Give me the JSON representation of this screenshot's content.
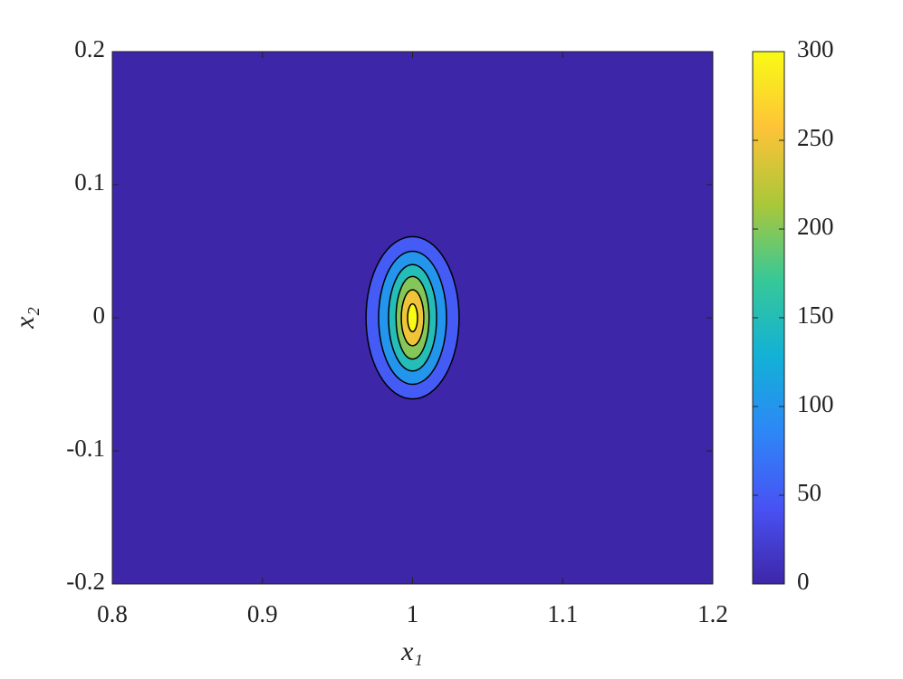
{
  "chart_data": {
    "type": "contour",
    "xlabel": "x₁",
    "ylabel": "x₂",
    "xlim": [
      0.8,
      1.2
    ],
    "xticks": [
      0.8,
      0.9,
      1,
      1.1,
      1.2
    ],
    "ylim": [
      -0.2,
      0.2
    ],
    "yticks": [
      -0.2,
      -0.1,
      0,
      0.1,
      0.2
    ],
    "clim": [
      0,
      300
    ],
    "cticks": [
      0,
      50,
      100,
      150,
      200,
      250,
      300
    ],
    "colormap": [
      "#3e26a8",
      "#4852f4",
      "#2d87f7",
      "#12b1d6",
      "#37c897",
      "#abc739",
      "#fec338",
      "#f9fb15"
    ],
    "center": [
      1,
      0
    ],
    "contours": [
      {
        "level": 50,
        "rx": 0.031,
        "ry": 0.061
      },
      {
        "level": 100,
        "rx": 0.0226,
        "ry": 0.05
      },
      {
        "level": 150,
        "rx": 0.016,
        "ry": 0.04
      },
      {
        "level": 200,
        "rx": 0.011,
        "ry": 0.031
      },
      {
        "level": 250,
        "rx": 0.0075,
        "ry": 0.021
      },
      {
        "level": 300,
        "rx": 0.0033,
        "ry": 0.0105
      }
    ]
  }
}
